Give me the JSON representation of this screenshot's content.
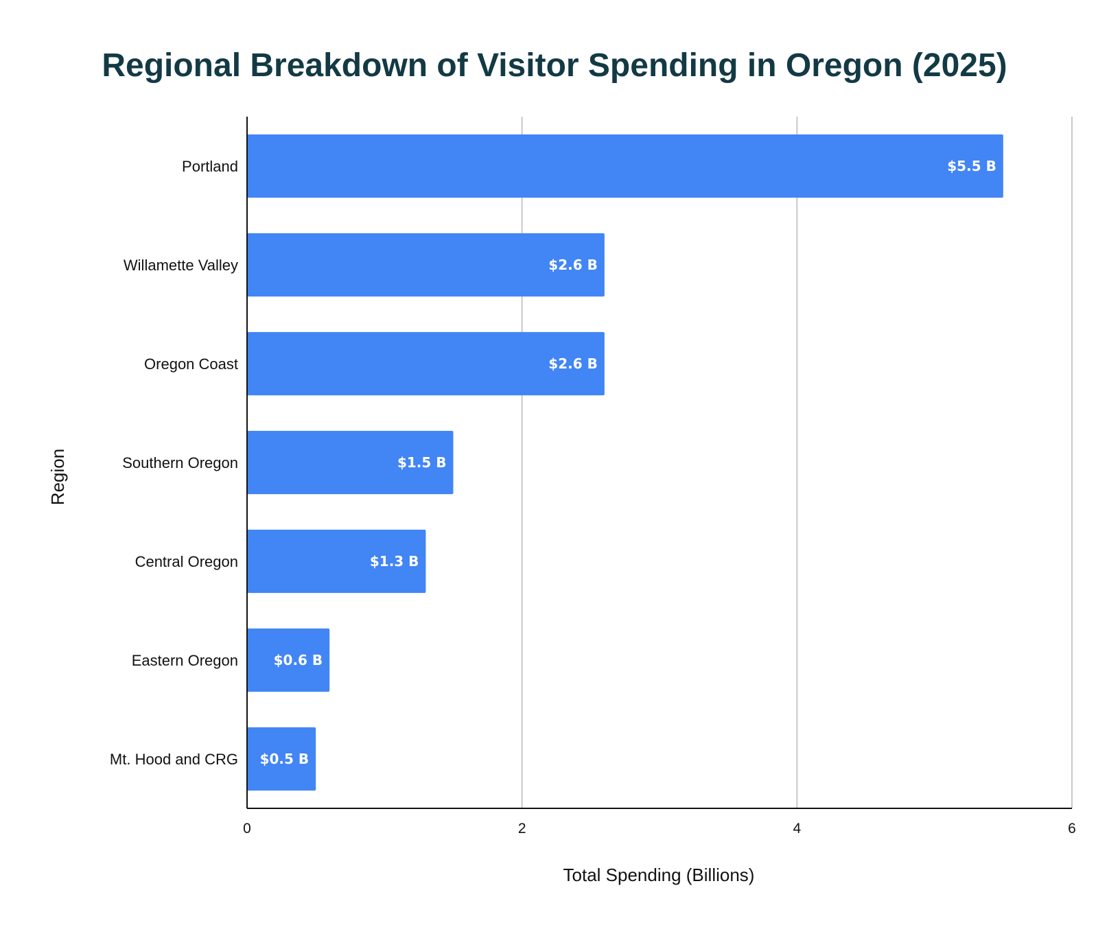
{
  "chart_data": {
    "type": "bar",
    "orientation": "horizontal",
    "title": "Regional Breakdown of Visitor Spending in Oregon (2025)",
    "xlabel": "Total Spending (Billions)",
    "ylabel": "Region",
    "xlim": [
      0,
      6
    ],
    "x_ticks": [
      "0",
      "2",
      "4",
      "6"
    ],
    "grid": true,
    "bar_color": "#4285f4",
    "categories": [
      "Portland",
      "Willamette Valley",
      "Oregon Coast",
      "Southern Oregon",
      "Central Oregon",
      "Eastern Oregon",
      "Mt. Hood and CRG"
    ],
    "values": [
      5.5,
      2.6,
      2.6,
      1.5,
      1.3,
      0.6,
      0.5
    ],
    "data_labels": [
      "$5.5 B",
      "$2.6 B",
      "$2.6 B",
      "$1.5 B",
      "$1.3 B",
      "$0.6 B",
      "$0.5 B"
    ]
  }
}
